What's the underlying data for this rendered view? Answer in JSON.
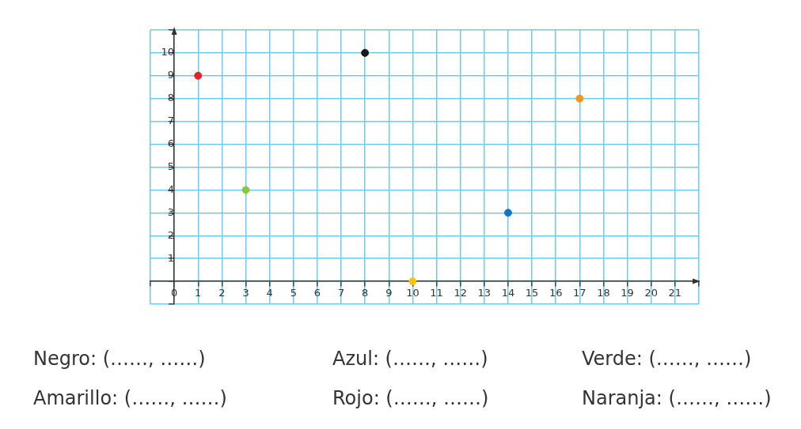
{
  "chart_data": {
    "type": "scatter",
    "x": [
      1,
      3,
      8,
      10,
      14,
      17
    ],
    "values": [
      9,
      4,
      10,
      0,
      3,
      8
    ],
    "colors": [
      "#e8202a",
      "#8cc63f",
      "#1a1a1a",
      "#ffc20e",
      "#0a78c8",
      "#f7941d"
    ],
    "xlim": [
      -1,
      22
    ],
    "ylim": [
      -1,
      11
    ],
    "xticks": [
      {
        "value": -1,
        "label": null
      },
      0,
      1,
      2,
      3,
      4,
      5,
      6,
      7,
      8,
      9,
      10,
      11,
      12,
      13,
      14,
      15,
      16,
      17,
      18,
      19,
      20,
      21,
      {
        "value": 22,
        "label": null
      }
    ],
    "yticks": [
      {
        "value": -1,
        "label": null
      },
      {
        "value": 0,
        "label": null
      },
      1,
      2,
      3,
      4,
      5,
      6,
      7,
      8,
      9,
      10,
      {
        "value": 11,
        "label": null
      }
    ],
    "grid": true,
    "marker": "circle",
    "legend": false,
    "annotations": [
      "Negro: (……, ……)",
      "Azul: (……, ……)",
      "Verde: (……, ……)",
      "Amarillo: (……, ……)",
      "Rojo: (……, ……)",
      "Naranja: (……, ……)"
    ]
  }
}
